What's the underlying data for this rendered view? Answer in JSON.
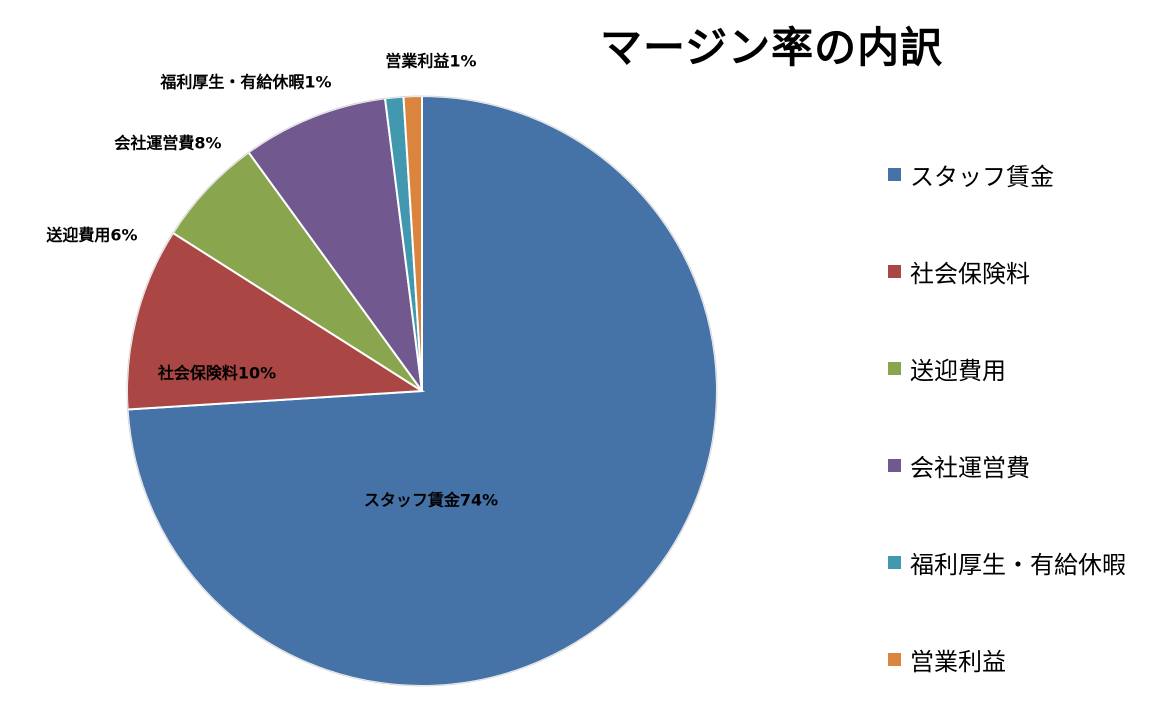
{
  "chart_data": {
    "type": "pie",
    "title": "マージン率の内訳",
    "categories": [
      "スタッフ賃金",
      "社会保険料",
      "送迎費用",
      "会社運営費",
      "福利厚生・有給休暇",
      "営業利益"
    ],
    "values": [
      74,
      10,
      6,
      8,
      1,
      1
    ],
    "data_labels": [
      "スタッフ賃金74%",
      "社会保険料10%",
      "送迎費用6%",
      "会社運営費8%",
      "福利厚生・有給休暇1%",
      "営業利益1%"
    ],
    "colors": [
      "#4572A7",
      "#AA4643",
      "#89A54E",
      "#71588F",
      "#4198AF",
      "#DB843D"
    ],
    "legend_position": "right",
    "start_angle": "top",
    "direction": "clockwise"
  }
}
